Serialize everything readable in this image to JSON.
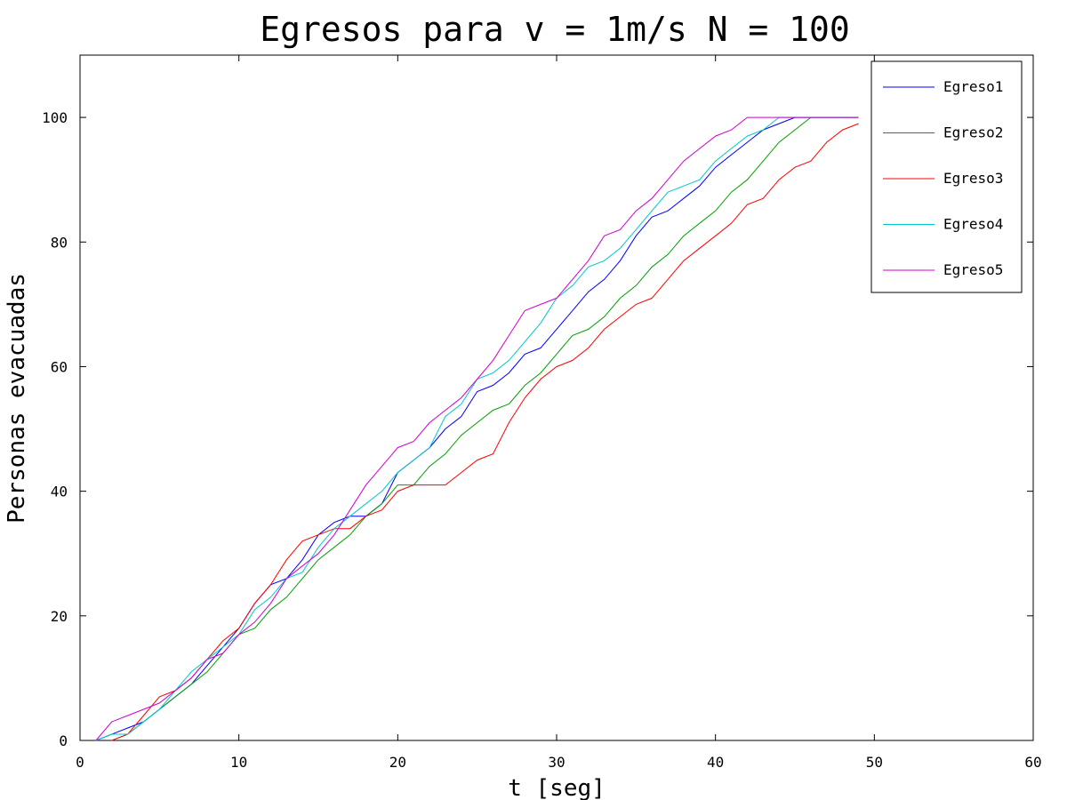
{
  "chart_data": {
    "type": "line",
    "title": "Egresos para v = 1m/s N = 100",
    "xlabel": "t [seg]",
    "ylabel": "Personas evacuadas",
    "xlim": [
      0,
      60
    ],
    "ylim": [
      0,
      110
    ],
    "xticks": [
      0,
      10,
      20,
      30,
      40,
      50,
      60
    ],
    "yticks": [
      0,
      20,
      40,
      60,
      80,
      100
    ],
    "grid": false,
    "legend_position": "top-right",
    "series": [
      {
        "name": "Egreso1",
        "color": "#0000ff",
        "x": [
          1,
          2,
          3,
          4,
          5,
          6,
          7,
          8,
          9,
          10,
          11,
          12,
          13,
          14,
          15,
          16,
          17,
          18,
          19,
          20,
          21,
          22,
          23,
          24,
          25,
          26,
          27,
          28,
          29,
          30,
          31,
          32,
          33,
          34,
          35,
          36,
          37,
          38,
          39,
          40,
          41,
          42,
          43,
          44,
          45,
          46,
          47,
          48,
          49
        ],
        "y": [
          0,
          1,
          2,
          3,
          5,
          7,
          9,
          12,
          15,
          18,
          22,
          25,
          26,
          29,
          33,
          35,
          36,
          36,
          38,
          43,
          45,
          47,
          50,
          52,
          56,
          57,
          59,
          62,
          63,
          66,
          69,
          72,
          74,
          77,
          81,
          84,
          85,
          87,
          89,
          92,
          94,
          96,
          98,
          99,
          100,
          100,
          100,
          100,
          100
        ]
      },
      {
        "name": "Egreso2",
        "color": "#00a000",
        "x": [
          2,
          3,
          4,
          5,
          6,
          7,
          8,
          9,
          10,
          11,
          12,
          13,
          14,
          15,
          16,
          17,
          18,
          19,
          20,
          21,
          22,
          23,
          24,
          25,
          26,
          27,
          28,
          29,
          30,
          31,
          32,
          33,
          34,
          35,
          36,
          37,
          38,
          39,
          40,
          41,
          42,
          43,
          44,
          45,
          46,
          47,
          48,
          49
        ],
        "y": [
          0,
          1,
          3,
          5,
          7,
          9,
          11,
          14,
          17,
          18,
          21,
          23,
          26,
          29,
          31,
          33,
          36,
          38,
          41,
          41,
          44,
          46,
          49,
          51,
          53,
          54,
          57,
          59,
          62,
          65,
          66,
          68,
          71,
          73,
          76,
          78,
          81,
          83,
          85,
          88,
          90,
          93,
          96,
          98,
          100,
          100,
          100,
          100
        ]
      },
      {
        "name": "Egreso3",
        "color": "#ff0000",
        "x": [
          2,
          3,
          4,
          5,
          6,
          7,
          8,
          9,
          10,
          11,
          12,
          13,
          14,
          15,
          16,
          17,
          18,
          19,
          20,
          21,
          22,
          23,
          24,
          25,
          26,
          27,
          28,
          29,
          30,
          31,
          32,
          33,
          34,
          35,
          36,
          37,
          38,
          39,
          40,
          41,
          42,
          43,
          44,
          45,
          46,
          47,
          48,
          49
        ],
        "y": [
          0,
          1,
          4,
          7,
          8,
          10,
          13,
          16,
          18,
          22,
          25,
          29,
          32,
          33,
          34,
          34,
          36,
          37,
          40,
          41,
          41,
          41,
          43,
          45,
          46,
          51,
          55,
          58,
          60,
          61,
          63,
          66,
          68,
          70,
          71,
          74,
          77,
          79,
          81,
          83,
          86,
          87,
          90,
          92,
          93,
          96,
          98,
          99
        ]
      },
      {
        "name": "Egreso4",
        "color": "#00c8c8",
        "x": [
          1,
          2,
          3,
          4,
          5,
          6,
          7,
          8,
          9,
          10,
          11,
          12,
          13,
          14,
          15,
          16,
          17,
          18,
          19,
          20,
          21,
          22,
          23,
          24,
          25,
          26,
          27,
          28,
          29,
          30,
          31,
          32,
          33,
          34,
          35,
          36,
          37,
          38,
          39,
          40,
          41,
          42,
          43,
          44,
          45,
          46,
          47,
          48,
          49
        ],
        "y": [
          0,
          1,
          1,
          3,
          5,
          8,
          11,
          13,
          15,
          17,
          21,
          23,
          26,
          27,
          31,
          34,
          36,
          38,
          40,
          43,
          45,
          47,
          52,
          54,
          58,
          59,
          61,
          64,
          67,
          71,
          73,
          76,
          77,
          79,
          82,
          85,
          88,
          89,
          90,
          93,
          95,
          97,
          98,
          100,
          100,
          100,
          100,
          100,
          100
        ]
      },
      {
        "name": "Egreso5",
        "color": "#d000d0",
        "x": [
          1,
          2,
          3,
          4,
          5,
          6,
          7,
          8,
          9,
          10,
          11,
          12,
          13,
          14,
          15,
          16,
          17,
          18,
          19,
          20,
          21,
          22,
          23,
          24,
          25,
          26,
          27,
          28,
          29,
          30,
          31,
          32,
          33,
          34,
          35,
          36,
          37,
          38,
          39,
          40,
          41,
          42,
          43,
          44,
          45,
          46,
          47,
          48,
          49
        ],
        "y": [
          0,
          3,
          4,
          5,
          6,
          8,
          10,
          13,
          14,
          17,
          19,
          22,
          26,
          28,
          30,
          33,
          37,
          41,
          44,
          47,
          48,
          51,
          53,
          55,
          58,
          61,
          65,
          69,
          70,
          71,
          74,
          77,
          81,
          82,
          85,
          87,
          90,
          93,
          95,
          97,
          98,
          100,
          100,
          100,
          100,
          100,
          100,
          100,
          100
        ]
      }
    ]
  }
}
